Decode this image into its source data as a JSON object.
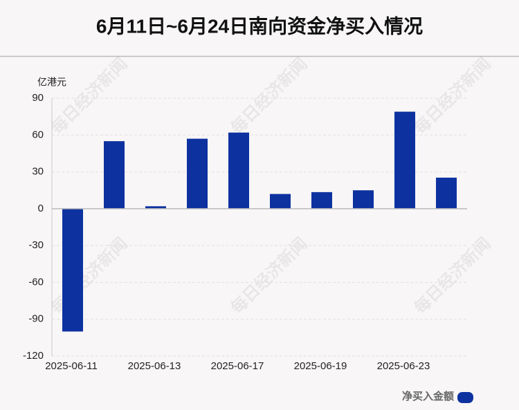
{
  "chart_data": {
    "type": "bar",
    "title": "6月11日~6月24日南向资金净买入情况",
    "y_unit": "亿港元",
    "watermark": "每日经济新闻",
    "categories": [
      "2025-06-11",
      null,
      "2025-06-13",
      null,
      "2025-06-17",
      null,
      "2025-06-19",
      null,
      "2025-06-23",
      null
    ],
    "series": [
      {
        "name": "净买入金额",
        "color": "#0d32a0",
        "values": [
          -100,
          55,
          2,
          57,
          62,
          12,
          13.5,
          15,
          79,
          25.3
        ]
      }
    ],
    "ylim": [
      -120,
      90
    ],
    "yticks": [
      -120,
      -90,
      -60,
      -30,
      0,
      30,
      60,
      90
    ],
    "grid": true
  }
}
